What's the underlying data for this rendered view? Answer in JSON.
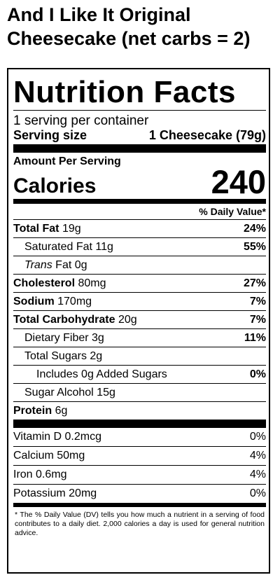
{
  "product": {
    "title_line1": "And I Like It Original",
    "title_line2": "Cheesecake (net carbs = 2)"
  },
  "label": {
    "heading": "Nutrition Facts",
    "servings_per_container": "1 serving per container",
    "serving_size_label": "Serving size",
    "serving_size_value": "1 Cheesecake (79g)",
    "amount_per_serving": "Amount Per Serving",
    "calories_label": "Calories",
    "calories_value": "240",
    "daily_value_header": "% Daily Value*",
    "nutrients": {
      "total_fat": {
        "name": "Total Fat",
        "amount": "19g",
        "dv": "24%"
      },
      "saturated_fat": {
        "name": "Saturated Fat 11g",
        "dv": "55%"
      },
      "trans_fat": {
        "name_italic": "Trans",
        "name_rest": "Fat 0g"
      },
      "cholesterol": {
        "name": "Cholesterol",
        "amount": "80mg",
        "dv": "27%"
      },
      "sodium": {
        "name": "Sodium",
        "amount": "170mg",
        "dv": "7%"
      },
      "total_carb": {
        "name": "Total Carbohydrate",
        "amount": "20g",
        "dv": "7%"
      },
      "dietary_fiber": {
        "name": "Dietary Fiber 3g",
        "dv": "11%"
      },
      "total_sugars": {
        "name": "Total Sugars 2g"
      },
      "added_sugars": {
        "name": "Includes 0g Added Sugars",
        "dv": "0%"
      },
      "sugar_alcohol": {
        "name": "Sugar Alcohol 15g"
      },
      "protein": {
        "name": "Protein",
        "amount": "6g"
      }
    },
    "vitamins": [
      {
        "name": "Vitamin D 0.2mcg",
        "dv": "0%"
      },
      {
        "name": "Calcium 50mg",
        "dv": "4%"
      },
      {
        "name": "Iron 0.6mg",
        "dv": "4%"
      },
      {
        "name": "Potassium 20mg",
        "dv": "0%"
      }
    ],
    "footnote": "* The % Daily Value (DV) tells you how much a nutrient in a serving of food contributes to a daily diet. 2,000 calories a day is used for general nutrition advice."
  }
}
